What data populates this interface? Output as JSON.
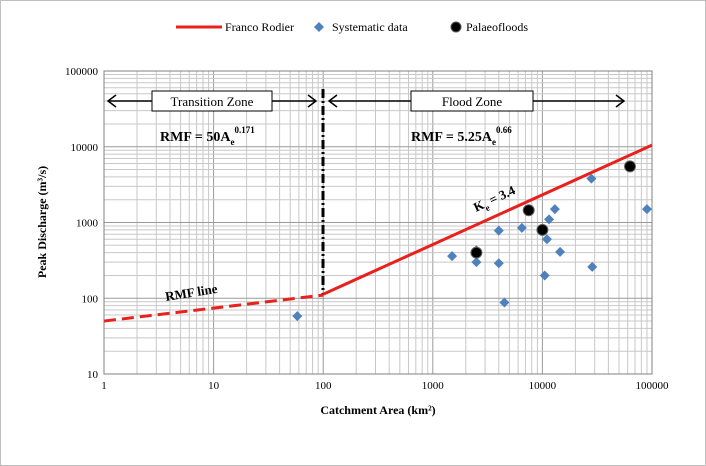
{
  "chart_data": {
    "type": "scatter",
    "xlabel": "Catchment Area (km²)",
    "ylabel": "Peak Discharge (m³/s)",
    "x_scale": "log",
    "y_scale": "log",
    "xlim": [
      1,
      100000
    ],
    "ylim": [
      10,
      100000
    ],
    "x_ticks": [
      "1",
      "10",
      "100",
      "1000",
      "10000",
      "100000"
    ],
    "y_ticks": [
      "10",
      "100",
      "1000",
      "10000",
      "100000"
    ],
    "grid": true,
    "legend_position": "top",
    "legend": [
      {
        "name": "Franco Rodier",
        "color": "#e8211d",
        "marker": "line"
      },
      {
        "name": "Systematic data",
        "color": "#4f81bd",
        "marker": "diamond"
      },
      {
        "name": "Palaeofloods",
        "color": "#000000",
        "marker": "circle"
      }
    ],
    "series": [
      {
        "name": "Franco Rodier",
        "color": "#e8211d",
        "style": "solid",
        "points": [
          [
            100,
            113
          ],
          [
            100000,
            10500
          ]
        ]
      },
      {
        "name": "RMF line",
        "color": "#e8211d",
        "style": "dashed",
        "points": [
          [
            1,
            50
          ],
          [
            100,
            110
          ]
        ]
      },
      {
        "name": "Systematic data",
        "color": "#4f81bd",
        "points": [
          [
            58,
            58
          ],
          [
            1500,
            360
          ],
          [
            2500,
            300
          ],
          [
            2500,
            430
          ],
          [
            4000,
            290
          ],
          [
            4000,
            780
          ],
          [
            4500,
            88
          ],
          [
            6500,
            850
          ],
          [
            10000,
            830
          ],
          [
            10500,
            200
          ],
          [
            11000,
            600
          ],
          [
            11500,
            1100
          ],
          [
            13000,
            1500
          ],
          [
            14500,
            410
          ],
          [
            28000,
            3800
          ],
          [
            28500,
            260
          ],
          [
            90000,
            1500
          ]
        ]
      },
      {
        "name": "Palaeofloods",
        "color": "#000000",
        "points": [
          [
            2500,
            400
          ],
          [
            7500,
            1450
          ],
          [
            10000,
            800
          ],
          [
            63000,
            5500
          ]
        ]
      }
    ],
    "annotations": {
      "transition_zone": "Transition Zone",
      "flood_zone": "Flood Zone",
      "rmf_left": {
        "base": "RMF = 50A",
        "sub": "e",
        "sup": "0.171"
      },
      "rmf_right": {
        "base": "RMF = 5.25A",
        "sub": "e",
        "sup": "0.66"
      },
      "ke_label": {
        "base": "K",
        "sub": "e",
        "rest": " = 3.4"
      },
      "rmf_line_label": "RMF line"
    }
  }
}
